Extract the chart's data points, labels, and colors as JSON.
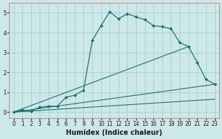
{
  "xlabel": "Humidex (Indice chaleur)",
  "xlim": [
    -0.5,
    23.5
  ],
  "ylim": [
    -0.3,
    5.5
  ],
  "bg_color": "#cce8e8",
  "grid_color": "#aacccc",
  "line_color": "#1a6e6a",
  "spine_color": "#cc8888",
  "main_line": {
    "x": [
      0,
      1,
      2,
      3,
      4,
      5,
      6,
      7,
      8,
      9,
      10,
      11,
      12,
      13,
      14,
      15,
      16,
      17,
      18,
      19,
      20,
      21,
      22,
      23
    ],
    "y": [
      0.0,
      0.1,
      0.05,
      0.25,
      0.3,
      0.3,
      0.75,
      0.85,
      1.1,
      3.6,
      4.35,
      5.05,
      4.7,
      4.95,
      4.8,
      4.65,
      4.35,
      4.3,
      4.2,
      3.5,
      3.3,
      2.5,
      1.65,
      1.4
    ]
  },
  "straight_lines": [
    {
      "x": [
        0,
        20
      ],
      "y": [
        0,
        3.3
      ]
    },
    {
      "x": [
        0,
        23
      ],
      "y": [
        0,
        1.4
      ]
    },
    {
      "x": [
        0,
        23
      ],
      "y": [
        0,
        0.65
      ]
    }
  ],
  "xticks": [
    0,
    1,
    2,
    3,
    4,
    5,
    6,
    7,
    8,
    9,
    10,
    11,
    12,
    13,
    14,
    15,
    16,
    17,
    18,
    19,
    20,
    21,
    22,
    23
  ],
  "yticks": [
    0,
    1,
    2,
    3,
    4,
    5
  ],
  "tick_fontsize": 5.5,
  "label_fontsize": 7
}
